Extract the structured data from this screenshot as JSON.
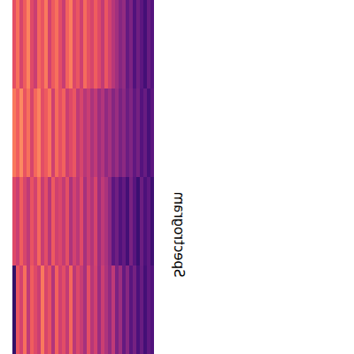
{
  "chart_data": {
    "type": "heatmap",
    "title": "Spectrogram",
    "color": "magma",
    "color_range": [
      0,
      1
    ],
    "tick_labels": false,
    "cells": [
      [
        0.62,
        0.7,
        0.58,
        0.66,
        0.74,
        0.6,
        0.55,
        0.68,
        0.63,
        0.72,
        0.57,
        0.65,
        0.7,
        0.61,
        0.54,
        0.67,
        0.73,
        0.59,
        0.64,
        0.56,
        0.69,
        0.62,
        0.58,
        0.66,
        0.6,
        0.53,
        0.64,
        0.57,
        0.5,
        0.45,
        0.38,
        0.42,
        0.3,
        0.36,
        0.25,
        0.33,
        0.28,
        0.22,
        0.31,
        0.26
      ],
      [
        0.72,
        0.66,
        0.75,
        0.63,
        0.7,
        0.58,
        0.68,
        0.74,
        0.61,
        0.65,
        0.71,
        0.56,
        0.69,
        0.62,
        0.67,
        0.55,
        0.6,
        0.64,
        0.52,
        0.58,
        0.5,
        0.55,
        0.47,
        0.53,
        0.44,
        0.49,
        0.41,
        0.46,
        0.38,
        0.43,
        0.35,
        0.4,
        0.32,
        0.37,
        0.29,
        0.34,
        0.26,
        0.31,
        0.23,
        0.28
      ],
      [
        0.6,
        0.55,
        0.66,
        0.58,
        0.52,
        0.63,
        0.57,
        0.68,
        0.54,
        0.61,
        0.5,
        0.65,
        0.56,
        0.59,
        0.53,
        0.62,
        0.48,
        0.57,
        0.51,
        0.6,
        0.46,
        0.55,
        0.49,
        0.58,
        0.44,
        0.52,
        0.47,
        0.4,
        0.28,
        0.33,
        0.25,
        0.3,
        0.22,
        0.35,
        0.27,
        0.2,
        0.32,
        0.24,
        0.29,
        0.21
      ],
      [
        0.18,
        0.64,
        0.57,
        0.7,
        0.52,
        0.66,
        0.6,
        0.55,
        0.72,
        0.58,
        0.63,
        0.49,
        0.67,
        0.56,
        0.61,
        0.53,
        0.68,
        0.51,
        0.59,
        0.54,
        0.46,
        0.62,
        0.5,
        0.57,
        0.43,
        0.55,
        0.48,
        0.41,
        0.52,
        0.36,
        0.44,
        0.3,
        0.39,
        0.27,
        0.34,
        0.24,
        0.31,
        0.22,
        0.29,
        0.25
      ]
    ]
  }
}
